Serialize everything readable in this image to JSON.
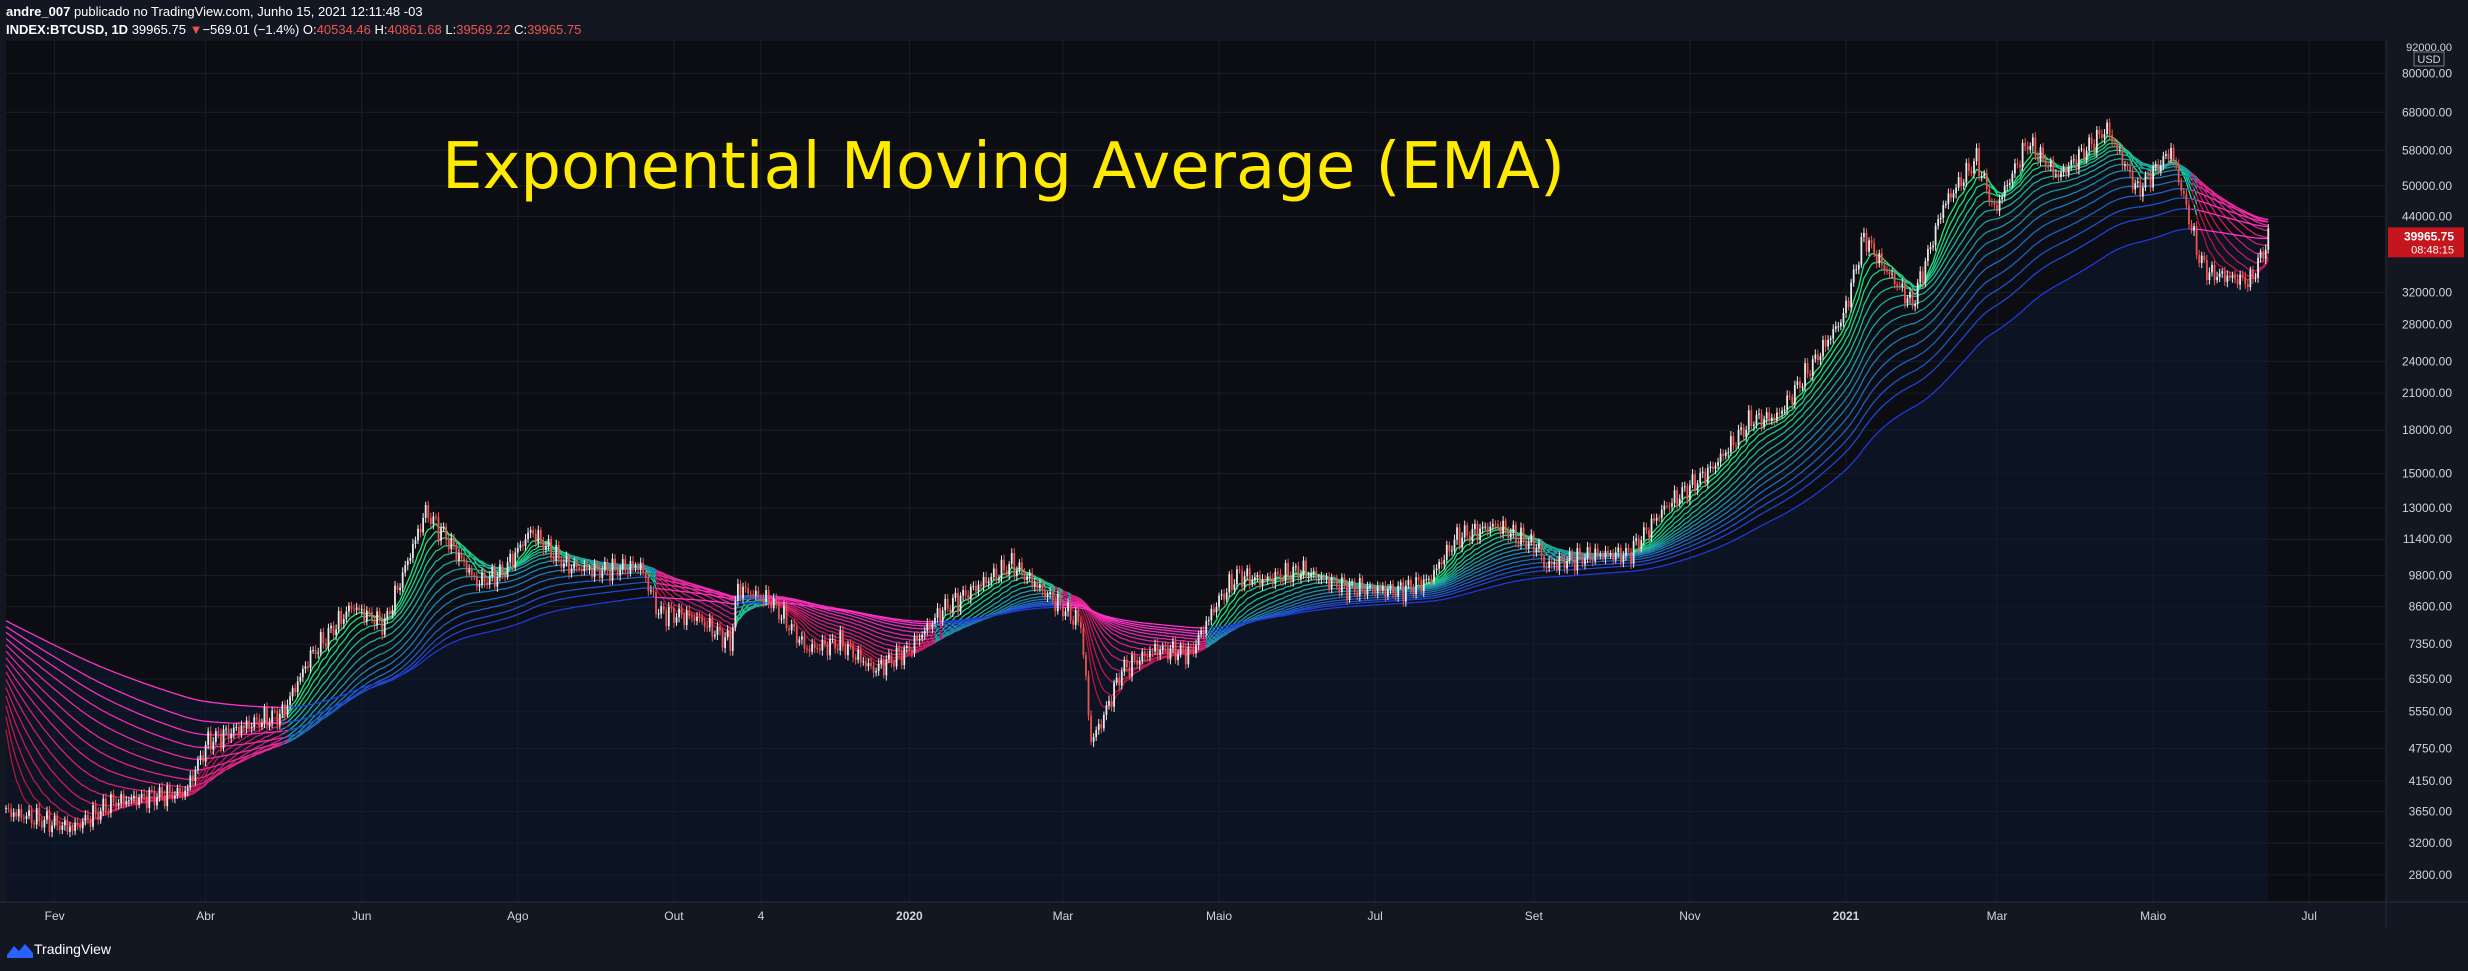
{
  "header": {
    "author": "andre_007",
    "published_text": "publicado no TradingView.com, Junho 15, 2021 12:11:48 -03",
    "symbol": "INDEX:BTCUSD, 1D",
    "last": "39965.75",
    "change_arrow": "▼",
    "change": "−569.01 (−1.4%)",
    "o_label": "O:",
    "o_value": "40534.46",
    "h_label": "H:",
    "h_value": "40861.68",
    "l_label": "L:",
    "l_value": "39569.22",
    "c_label": "C:",
    "c_value": "39965.75"
  },
  "footer": {
    "brand": "TradingView"
  },
  "colors": {
    "background": "#131722",
    "plot_background": "#0b0d12",
    "title": "#ffea00",
    "up_candle": "#e8e8e8",
    "down_candle": "#ef5350",
    "price_label": "#c4161c",
    "ema_bull_fast": "#1ee87a",
    "ema_bull_slow": "#1f3ad6",
    "ema_bear_fast": "#b0153a",
    "ema_bear_slow": "#ff33cc"
  },
  "chart_data": {
    "type": "line",
    "title": "Exponential Moving Average (EMA)",
    "scale": "log",
    "ylim": [
      2500,
      92000
    ],
    "currency": "USD",
    "last_price_label": "39965.75",
    "countdown_label": "08:48:15",
    "x_ticks": [
      {
        "label": "Fev",
        "date": "2019-02-01",
        "bold": false
      },
      {
        "label": "Abr",
        "date": "2019-04-01",
        "bold": false
      },
      {
        "label": "Jun",
        "date": "2019-06-01",
        "bold": false
      },
      {
        "label": "Ago",
        "date": "2019-08-01",
        "bold": false
      },
      {
        "label": "Out",
        "date": "2019-10-01",
        "bold": false
      },
      {
        "label": "4",
        "date": "2019-11-04",
        "bold": false
      },
      {
        "label": "2020",
        "date": "2020-01-01",
        "bold": true
      },
      {
        "label": "Mar",
        "date": "2020-03-01",
        "bold": false
      },
      {
        "label": "Maio",
        "date": "2020-05-01",
        "bold": false
      },
      {
        "label": "Jul",
        "date": "2020-07-01",
        "bold": false
      },
      {
        "label": "Set",
        "date": "2020-09-01",
        "bold": false
      },
      {
        "label": "Nov",
        "date": "2020-11-01",
        "bold": false
      },
      {
        "label": "2021",
        "date": "2021-01-01",
        "bold": true
      },
      {
        "label": "Mar",
        "date": "2021-03-01",
        "bold": false
      },
      {
        "label": "Maio",
        "date": "2021-05-01",
        "bold": false
      },
      {
        "label": "Jul",
        "date": "2021-07-01",
        "bold": false
      }
    ],
    "y_ticks": [
      {
        "label": "92000.00",
        "value": 92000
      },
      {
        "label": "80000.00",
        "value": 80000
      },
      {
        "label": "68000.00",
        "value": 68000
      },
      {
        "label": "58000.00",
        "value": 58000
      },
      {
        "label": "50000.00",
        "value": 50000
      },
      {
        "label": "44000.00",
        "value": 44000
      },
      {
        "label": "32000.00",
        "value": 32000
      },
      {
        "label": "28000.00",
        "value": 28000
      },
      {
        "label": "24000.00",
        "value": 24000
      },
      {
        "label": "21000.00",
        "value": 21000
      },
      {
        "label": "18000.00",
        "value": 18000
      },
      {
        "label": "15000.00",
        "value": 15000
      },
      {
        "label": "13000.00",
        "value": 13000
      },
      {
        "label": "11400.00",
        "value": 11400
      },
      {
        "label": "9800.00",
        "value": 9800
      },
      {
        "label": "8600.00",
        "value": 8600
      },
      {
        "label": "7350.00",
        "value": 7350
      },
      {
        "label": "6350.00",
        "value": 6350
      },
      {
        "label": "5550.00",
        "value": 5550
      },
      {
        "label": "4750.00",
        "value": 4750
      },
      {
        "label": "4150.00",
        "value": 4150
      },
      {
        "label": "3650.00",
        "value": 3650
      },
      {
        "label": "3200.00",
        "value": 3200
      },
      {
        "label": "2800.00",
        "value": 2800
      }
    ],
    "x_start": "2019-01-13",
    "x_end": "2021-07-31",
    "series": [
      {
        "points": [
          [
            "2019-01-13",
            3650
          ],
          [
            "2019-01-27",
            3520
          ],
          [
            "2019-02-08",
            3400
          ],
          [
            "2019-02-24",
            3800
          ],
          [
            "2019-03-10",
            3880
          ],
          [
            "2019-03-24",
            3960
          ],
          [
            "2019-04-02",
            4900
          ],
          [
            "2019-04-20",
            5300
          ],
          [
            "2019-05-01",
            5500
          ],
          [
            "2019-05-12",
            7000
          ],
          [
            "2019-05-28",
            8600
          ],
          [
            "2019-06-10",
            8000
          ],
          [
            "2019-06-26",
            12800
          ],
          [
            "2019-07-04",
            11500
          ],
          [
            "2019-07-16",
            9500
          ],
          [
            "2019-07-26",
            9900
          ],
          [
            "2019-08-06",
            11800
          ],
          [
            "2019-08-20",
            10200
          ],
          [
            "2019-09-01",
            10000
          ],
          [
            "2019-09-18",
            10200
          ],
          [
            "2019-09-25",
            8400
          ],
          [
            "2019-10-10",
            8200
          ],
          [
            "2019-10-23",
            7400
          ],
          [
            "2019-10-26",
            9300
          ],
          [
            "2019-11-08",
            8800
          ],
          [
            "2019-11-22",
            7200
          ],
          [
            "2019-12-05",
            7400
          ],
          [
            "2019-12-18",
            6600
          ],
          [
            "2020-01-01",
            7200
          ],
          [
            "2020-01-14",
            8500
          ],
          [
            "2020-02-10",
            10300
          ],
          [
            "2020-02-28",
            8700
          ],
          [
            "2020-03-08",
            8000
          ],
          [
            "2020-03-12",
            4900
          ],
          [
            "2020-03-16",
            5300
          ],
          [
            "2020-03-24",
            6600
          ],
          [
            "2020-04-06",
            7200
          ],
          [
            "2020-04-20",
            7100
          ],
          [
            "2020-04-30",
            8700
          ],
          [
            "2020-05-08",
            9800
          ],
          [
            "2020-05-18",
            9600
          ],
          [
            "2020-06-02",
            10000
          ],
          [
            "2020-06-20",
            9300
          ],
          [
            "2020-07-10",
            9200
          ],
          [
            "2020-07-22",
            9600
          ],
          [
            "2020-08-02",
            11500
          ],
          [
            "2020-08-17",
            12100
          ],
          [
            "2020-09-03",
            11000
          ],
          [
            "2020-09-05",
            10200
          ],
          [
            "2020-09-25",
            10700
          ],
          [
            "2020-10-08",
            10700
          ],
          [
            "2020-10-22",
            13000
          ],
          [
            "2020-11-10",
            15400
          ],
          [
            "2020-11-25",
            18800
          ],
          [
            "2020-12-05",
            19000
          ],
          [
            "2020-12-17",
            23000
          ],
          [
            "2020-12-31",
            29000
          ],
          [
            "2021-01-08",
            40500
          ],
          [
            "2021-01-15",
            36000
          ],
          [
            "2021-01-27",
            30500
          ],
          [
            "2021-02-08",
            46000
          ],
          [
            "2021-02-21",
            56000
          ],
          [
            "2021-02-28",
            45000
          ],
          [
            "2021-03-13",
            60000
          ],
          [
            "2021-03-25",
            52000
          ],
          [
            "2021-04-13",
            63500
          ],
          [
            "2021-04-25",
            49000
          ],
          [
            "2021-05-08",
            58000
          ],
          [
            "2021-05-12",
            49500
          ],
          [
            "2021-05-19",
            37000
          ],
          [
            "2021-05-23",
            34700
          ],
          [
            "2021-06-08",
            33500
          ],
          [
            "2021-06-15",
            39965
          ]
        ]
      }
    ]
  }
}
